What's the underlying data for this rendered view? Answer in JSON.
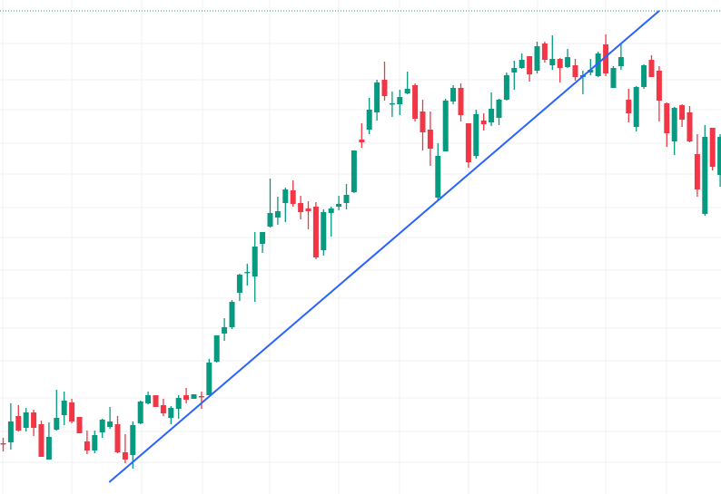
{
  "chart_data": {
    "type": "candlestick",
    "title": "",
    "xlabel": "",
    "ylabel": "",
    "ylim": [
      5.5,
      60
    ],
    "grid": true,
    "colors": {
      "up": "#089981",
      "down": "#f23645",
      "trendline": "#2962ff",
      "price_line": "#089981",
      "grid": "#f0f0f0"
    },
    "ohlc_fields": [
      "open",
      "high",
      "low",
      "close"
    ],
    "candles": [
      [
        11.1,
        11.7,
        10.2,
        11.0
      ],
      [
        11.2,
        15.5,
        10.4,
        13.5
      ],
      [
        14.1,
        15.3,
        12.4,
        12.5
      ],
      [
        12.8,
        15.0,
        12.4,
        14.5
      ],
      [
        14.5,
        14.8,
        11.9,
        12.8
      ],
      [
        13.2,
        13.6,
        9.6,
        9.6
      ],
      [
        9.3,
        13.4,
        9.3,
        11.8
      ],
      [
        12.6,
        17.0,
        12.5,
        13.9
      ],
      [
        14.2,
        16.8,
        13.1,
        15.8
      ],
      [
        15.6,
        16.0,
        13.3,
        13.5
      ],
      [
        14.0,
        14.0,
        12.2,
        12.2
      ],
      [
        11.3,
        12.5,
        9.9,
        10.3
      ],
      [
        10.3,
        12.5,
        10.0,
        12.0
      ],
      [
        12.3,
        13.8,
        11.7,
        13.7
      ],
      [
        12.9,
        15.1,
        12.7,
        13.5
      ],
      [
        13.2,
        14.1,
        10.0,
        10.1
      ],
      [
        10.1,
        12.1,
        8.9,
        9.3
      ],
      [
        9.8,
        13.5,
        8.3,
        13.1
      ],
      [
        13.3,
        15.8,
        13.2,
        15.7
      ],
      [
        15.5,
        16.8,
        15.4,
        16.4
      ],
      [
        16.4,
        16.4,
        15.1,
        15.1
      ],
      [
        15.3,
        16.0,
        14.1,
        14.4
      ],
      [
        13.9,
        15.2,
        13.2,
        15.0
      ],
      [
        14.9,
        16.4,
        13.8,
        16.1
      ],
      [
        16.4,
        17.2,
        15.5,
        15.9
      ],
      [
        16.0,
        16.5,
        16.0,
        16.5
      ],
      [
        16.3,
        16.8,
        14.9,
        16.2
      ],
      [
        16.4,
        20.4,
        16.4,
        20.0
      ],
      [
        20.1,
        23.0,
        20.0,
        23.0
      ],
      [
        23.2,
        24.9,
        22.4,
        23.9
      ],
      [
        23.9,
        26.9,
        23.7,
        26.7
      ],
      [
        27.7,
        29.8,
        26.8,
        29.7
      ],
      [
        29.9,
        30.9,
        28.5,
        30.0
      ],
      [
        29.5,
        34.4,
        26.7,
        32.8
      ],
      [
        33.1,
        34.4,
        32.1,
        34.4
      ],
      [
        35.0,
        40.3,
        34.9,
        36.5
      ],
      [
        36.0,
        38.3,
        35.2,
        36.7
      ],
      [
        37.6,
        39.3,
        35.5,
        39.1
      ],
      [
        39.0,
        40.1,
        37.2,
        37.5
      ],
      [
        37.6,
        38.4,
        35.8,
        36.6
      ],
      [
        37.0,
        37.8,
        34.7,
        36.7
      ],
      [
        37.2,
        37.7,
        31.4,
        31.6
      ],
      [
        32.4,
        36.9,
        31.8,
        36.6
      ],
      [
        36.5,
        37.2,
        33.9,
        37.0
      ],
      [
        37.2,
        38.4,
        36.8,
        37.5
      ],
      [
        37.6,
        39.7,
        36.9,
        38.5
      ],
      [
        38.8,
        43.4,
        38.7,
        43.4
      ],
      [
        44.6,
        46.4,
        43.7,
        44.3
      ],
      [
        45.7,
        49.2,
        45.2,
        47.9
      ],
      [
        47.6,
        51.2,
        46.7,
        50.9
      ],
      [
        51.2,
        53.2,
        48.9,
        49.4
      ],
      [
        48.5,
        49.9,
        47.1,
        48.6
      ],
      [
        48.5,
        50.1,
        47.3,
        49.3
      ],
      [
        49.7,
        52.1,
        49.6,
        50.2
      ],
      [
        50.6,
        50.8,
        46.6,
        46.9
      ],
      [
        47.7,
        49.0,
        43.4,
        45.4
      ],
      [
        45.7,
        47.7,
        41.7,
        43.6
      ],
      [
        38.2,
        44.2,
        37.9,
        42.8
      ],
      [
        43.3,
        49.1,
        43.3,
        48.9
      ],
      [
        48.8,
        50.6,
        48.5,
        50.3
      ],
      [
        50.3,
        50.8,
        46.6,
        47.3
      ],
      [
        46.4,
        46.4,
        41.5,
        42.1
      ],
      [
        42.8,
        47.9,
        42.5,
        47.4
      ],
      [
        46.7,
        47.5,
        45.6,
        46.3
      ],
      [
        46.5,
        49.8,
        46.1,
        48.0
      ],
      [
        47.0,
        49.1,
        46.2,
        49.0
      ],
      [
        49.0,
        52.0,
        48.9,
        51.7
      ],
      [
        52.0,
        53.3,
        50.1,
        52.5
      ],
      [
        52.5,
        54.1,
        52.4,
        53.4
      ],
      [
        53.8,
        53.8,
        51.0,
        51.8
      ],
      [
        52.2,
        55.4,
        51.9,
        54.9
      ],
      [
        55.2,
        55.4,
        53.1,
        53.4
      ],
      [
        52.8,
        56.1,
        52.3,
        53.5
      ],
      [
        53.5,
        53.6,
        50.9,
        52.5
      ],
      [
        52.6,
        54.6,
        52.5,
        53.7
      ],
      [
        52.8,
        53.5,
        51.1,
        51.5
      ],
      [
        51.5,
        52.2,
        49.6,
        51.7
      ],
      [
        52.0,
        53.5,
        51.7,
        52.3
      ],
      [
        51.6,
        54.3,
        51.5,
        54.1
      ],
      [
        55.1,
        56.2,
        51.6,
        51.9
      ],
      [
        50.3,
        52.7,
        50.3,
        52.5
      ],
      [
        52.7,
        55.1,
        52.3,
        53.7
      ],
      [
        49.0,
        50.2,
        46.5,
        47.5
      ],
      [
        46.0,
        50.5,
        45.5,
        50.4
      ],
      [
        50.4,
        52.9,
        50.2,
        52.8
      ],
      [
        53.4,
        53.9,
        51.5,
        51.5
      ],
      [
        52.2,
        52.7,
        46.6,
        48.9
      ],
      [
        48.6,
        48.7,
        43.8,
        45.3
      ],
      [
        44.4,
        48.2,
        42.9,
        48.1
      ],
      [
        48.4,
        48.5,
        46.0,
        46.8
      ],
      [
        47.6,
        48.3,
        44.3,
        44.4
      ],
      [
        43.0,
        45.2,
        38.3,
        39.1
      ],
      [
        36.4,
        46.2,
        36.2,
        44.9
      ],
      [
        45.9,
        45.9,
        41.2,
        41.6
      ],
      [
        40.7,
        45.2,
        39.4,
        44.9
      ]
    ],
    "trendline": {
      "from": {
        "index": 13.9,
        "price": 6.8
      },
      "to": {
        "index": 86.0,
        "price": 58.8
      }
    },
    "price_line": 58.8
  }
}
